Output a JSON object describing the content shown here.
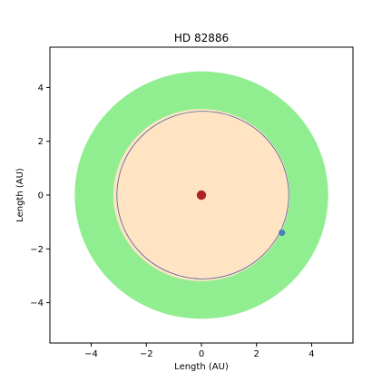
{
  "chart_data": {
    "type": "scatter",
    "title": "HD 82886",
    "xlabel": "Length (AU)",
    "ylabel": "Length (AU)",
    "xlim": [
      -5.5,
      5.5
    ],
    "ylim": [
      -5.5,
      5.5
    ],
    "grid": false,
    "xticks": [
      -4,
      -2,
      0,
      2,
      4
    ],
    "yticks": [
      -4,
      -2,
      0,
      2,
      4
    ],
    "xtick_labels": [
      "−4",
      "−2",
      "0",
      "2",
      "4"
    ],
    "ytick_labels": [
      "−4",
      "−2",
      "0",
      "2",
      "4"
    ],
    "habitable_zone": {
      "inner_radius": 3.2,
      "outer_radius": 4.6,
      "color": "#90ee90"
    },
    "inner_region": {
      "radius": 3.2,
      "color": "#ffe4c4"
    },
    "star": {
      "x": 0,
      "y": 0,
      "color": "#b22222"
    },
    "orbit": {
      "semi_major_axis": 3.12,
      "eccentricity": 0.05,
      "center_x": 0.05,
      "center_y": 0.0,
      "color": "#4b5f9e"
    },
    "planet": {
      "x": 2.92,
      "y": -1.4,
      "color": "#4682b4"
    }
  }
}
